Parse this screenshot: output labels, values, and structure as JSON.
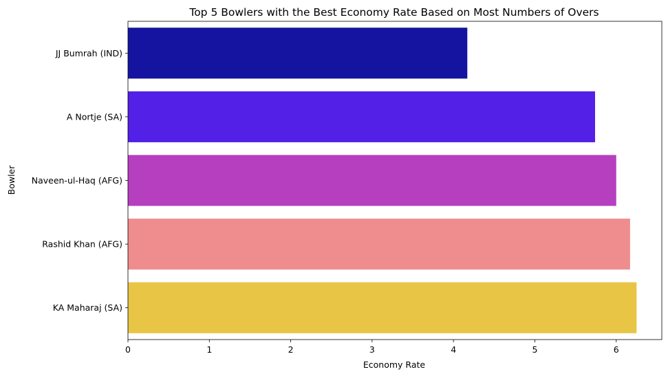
{
  "chart_data": {
    "type": "bar",
    "orientation": "horizontal",
    "title": "Top 5 Bowlers with the Best Economy Rate Based on Most Numbers of Overs",
    "xlabel": "Economy Rate",
    "ylabel": "Bowler",
    "categories": [
      "JJ Bumrah (IND)",
      "A Nortje (SA)",
      "Naveen-ul-Haq (AFG)",
      "Rashid Khan (AFG)",
      "KA Maharaj (SA)"
    ],
    "values": [
      4.17,
      5.74,
      6.0,
      6.17,
      6.25
    ],
    "colors": [
      "#1414a0",
      "#5220e6",
      "#b63fc0",
      "#ef8d8e",
      "#e8c545"
    ],
    "xlim": [
      0,
      6.56
    ],
    "xticks": [
      0,
      1,
      2,
      3,
      4,
      5,
      6
    ],
    "grid": false,
    "legend": "none"
  }
}
